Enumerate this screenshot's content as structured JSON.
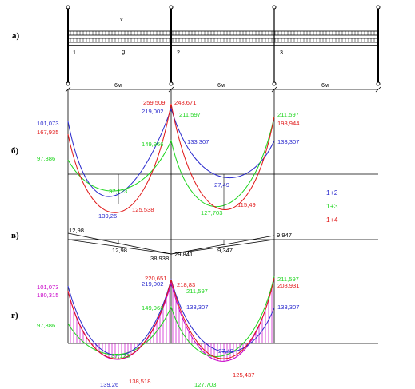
{
  "colors": {
    "blue": "#2a2acd",
    "green": "#1ed51e",
    "red": "#e01818",
    "magenta": "#c800c8",
    "black": "#000000"
  },
  "row_labels": {
    "a": "а)",
    "b": "б)",
    "v": "в)",
    "g": "г)"
  },
  "beam": {
    "load_top": "v",
    "load_bottom": "g",
    "supports": [
      "1",
      "2",
      "3"
    ],
    "spans": [
      "6м",
      "6м",
      "6м"
    ]
  },
  "legend": [
    "1+2",
    "1+3",
    "1+4"
  ],
  "diagram_b": {
    "left_blue": "101,073",
    "left_red": "167,935",
    "left_green": "97,386",
    "s2_red_left": "259,509",
    "s2_red_right": "248,671",
    "s2_blue": "219,002",
    "s2_green": "211,597",
    "s2_green_inner": "149,966",
    "s2_blue_right": "133,307",
    "s3_green": "211,597",
    "s3_red": "198,944",
    "s3_blue": "133,307",
    "sp1_green": "37,123",
    "sp1_blue": "139,26",
    "sp1_red": "125,538",
    "sp2_blue": "27,49",
    "sp2_green": "127,703",
    "sp2_red": "115,49"
  },
  "diagram_v": {
    "left_top": "12,98",
    "left_bottom": "12,98",
    "s2_a": "38,938",
    "s2_b": "29,841",
    "s3_a": "9,347",
    "s3_b": "9,947"
  },
  "diagram_g": {
    "left_blue": "101,073",
    "left_red": "180,315",
    "left_green": "97,386",
    "s2_red": "220,651",
    "s2_blue": "219,002",
    "s2_red_right": "218,83",
    "s2_green": "211,597",
    "s2_green_inner": "149,966",
    "s2_blue_right": "133,307",
    "s3_green": "211,597",
    "s3_red": "208,931",
    "s3_blue": "133,307",
    "sp1_green": "37,123",
    "sp1_blue": "139,26",
    "sp1_red": "138,518",
    "sp2_blue": "27,49",
    "sp2_green": "127,703",
    "sp2_red": "125,437"
  }
}
